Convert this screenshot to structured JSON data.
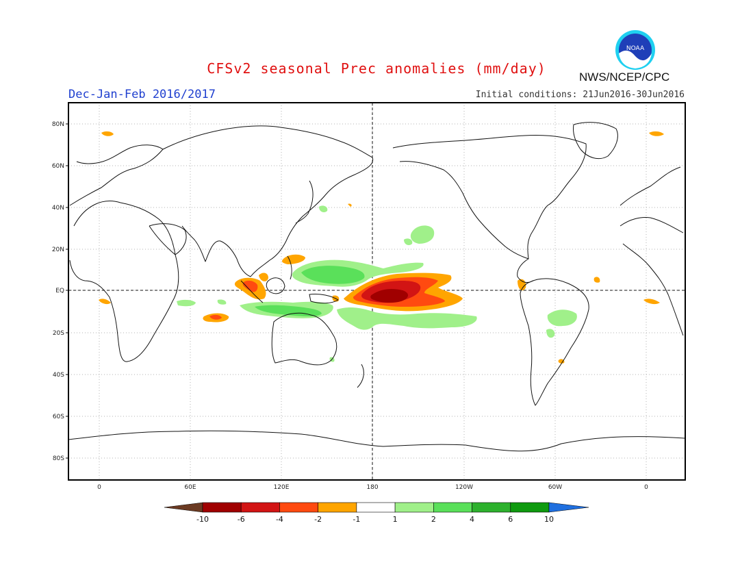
{
  "header": {
    "title": "CFSv2 seasonal Prec anomalies (mm/day)",
    "period": "Dec-Jan-Feb 2016/2017",
    "initial_conditions": "Initial conditions: 21Jun2016-30Jun2016",
    "agency": "NWS/NCEP/CPC",
    "logo_text": "NOAA"
  },
  "map": {
    "lat_labels": [
      "80N",
      "60N",
      "40N",
      "20N",
      "EQ",
      "20S",
      "40S",
      "60S",
      "80S"
    ],
    "lon_labels": [
      "0",
      "60E",
      "120E",
      "180",
      "120W",
      "60W",
      "0"
    ],
    "colors": {
      "wet": [
        "#a0f08a",
        "#5ae05a",
        "#2db12d",
        "#0f9a0f"
      ],
      "dry": [
        "#ffa500",
        "#ff4a10",
        "#d21414",
        "#a00000"
      ]
    }
  },
  "colorbar": {
    "tick_labels": [
      "-10",
      "-6",
      "-4",
      "-2",
      "-1",
      "1",
      "2",
      "4",
      "6",
      "10"
    ],
    "colors": [
      "#6b3a22",
      "#a00000",
      "#d21414",
      "#ff4a10",
      "#ffa500",
      "#ffffff",
      "#a0f08a",
      "#5ae05a",
      "#2db12d",
      "#0f9a0f",
      "#1f6fdf"
    ]
  }
}
